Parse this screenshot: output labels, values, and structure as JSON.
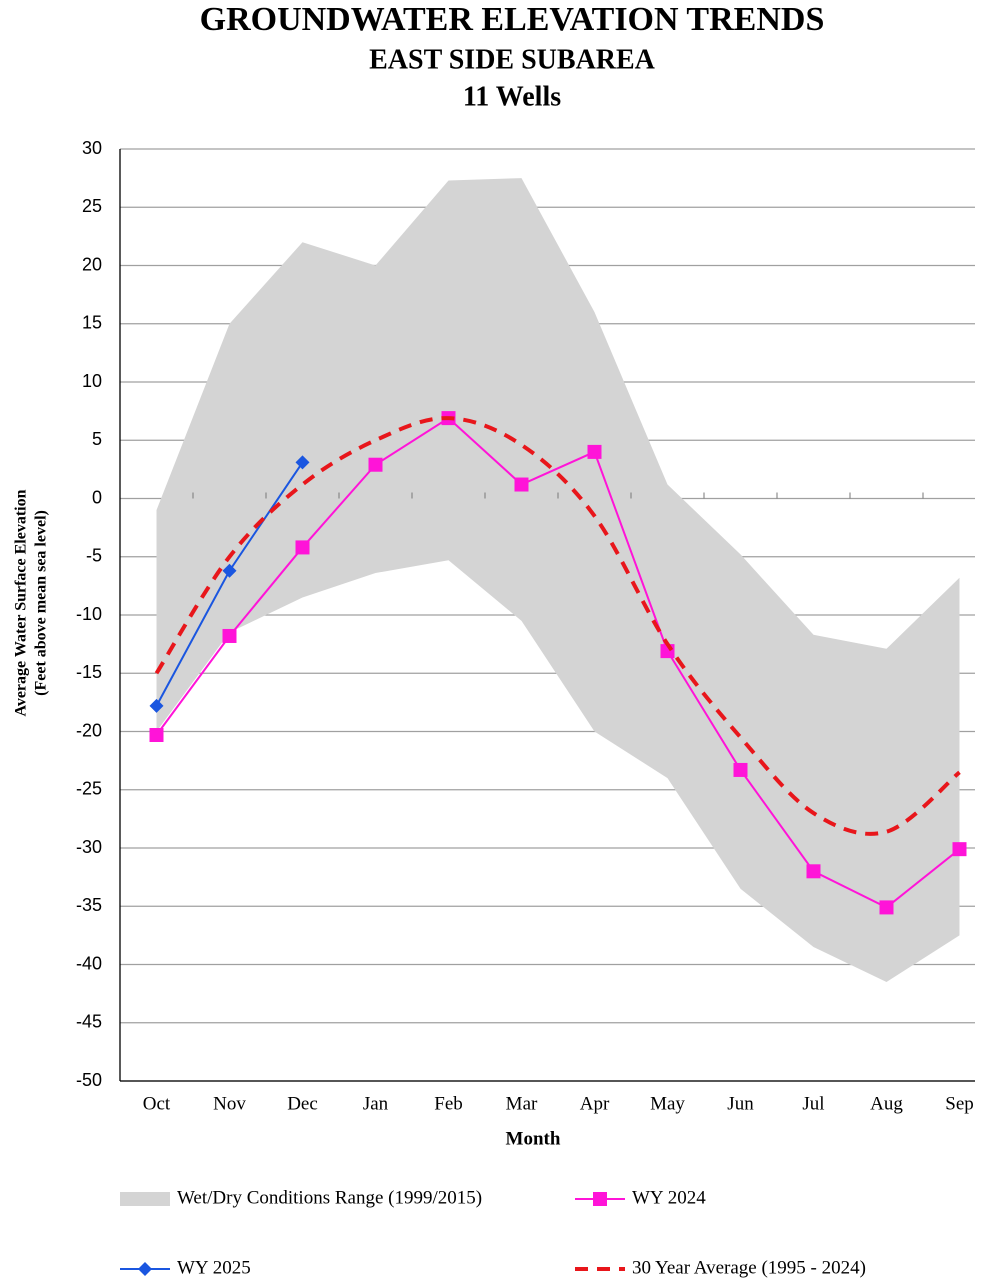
{
  "chart_data": {
    "type": "line",
    "title_lines": [
      "GROUNDWATER ELEVATION TRENDS",
      "EAST SIDE SUBAREA",
      "11 Wells"
    ],
    "xlabel": "Month",
    "ylabel_lines": [
      "Average Water Surface Elevation",
      "(Feet above mean sea level)"
    ],
    "categories": [
      "Oct",
      "Nov",
      "Dec",
      "Jan",
      "Feb",
      "Mar",
      "Apr",
      "May",
      "Jun",
      "Jul",
      "Aug",
      "Sep"
    ],
    "ylim": [
      -50,
      30
    ],
    "yticks": [
      -50,
      -45,
      -40,
      -35,
      -30,
      -25,
      -20,
      -15,
      -10,
      -5,
      0,
      5,
      10,
      15,
      20,
      25,
      30
    ],
    "grid": true,
    "series": [
      {
        "name": "Wet/Dry Conditions Range (1999/2015)",
        "style": "range",
        "color": "#d4d4d4",
        "high": [
          -1,
          15,
          22,
          20,
          27.3,
          27.5,
          16,
          1.2,
          -4.8,
          -11.7,
          -12.9,
          -6.8
        ],
        "low": [
          -20,
          -11.5,
          -8.5,
          -6.4,
          -5.3,
          -10.5,
          -20,
          -24,
          -33.5,
          -38.5,
          -41.5,
          -37.5
        ]
      },
      {
        "name": "WY 2024",
        "style": "square",
        "color": "#ff14d8",
        "values": [
          -20.3,
          -11.8,
          -4.2,
          2.9,
          6.9,
          1.2,
          4,
          -13.1,
          -23.3,
          -32,
          -35.1,
          -30.1
        ]
      },
      {
        "name": "WY 2025",
        "style": "diamond",
        "color": "#1a56e0",
        "values": [
          -17.8,
          -6.2,
          3.1,
          null,
          null,
          null,
          null,
          null,
          null,
          null,
          null,
          null
        ]
      },
      {
        "name": "30 Year Average (1995 - 2024)",
        "style": "dashed-smooth",
        "color": "#e8161b",
        "values": [
          -15,
          -5,
          1.2,
          5,
          6.9,
          4.6,
          -1.5,
          -12.5,
          -20.5,
          -27,
          -28.6,
          -23.5
        ]
      }
    ]
  }
}
